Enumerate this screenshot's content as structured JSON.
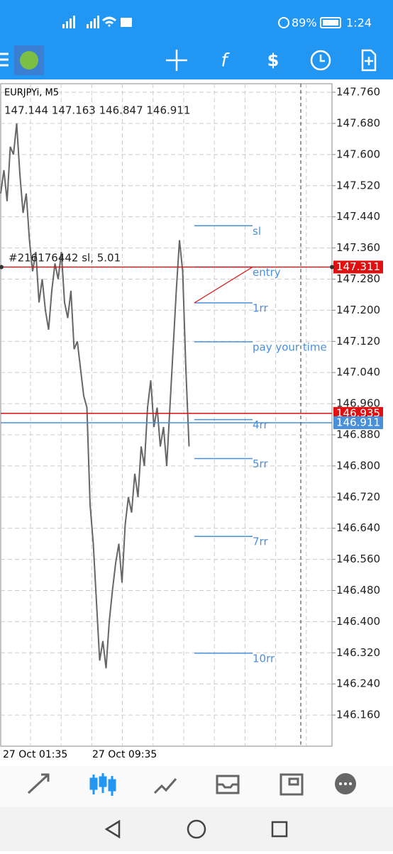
{
  "status_bar": {
    "battery": "89%",
    "time": "1:24"
  },
  "chart": {
    "symbol": "EURJPYi, M5",
    "ohlc": "147.144 147.163 146.847 146.911",
    "order_label": "#216176442 sl, 5.01",
    "ylim": [
      146.08,
      147.782
    ],
    "yticks": [
      {
        "value": 147.76,
        "label": "147.760"
      },
      {
        "value": 147.68,
        "label": "147.680"
      },
      {
        "value": 147.6,
        "label": "147.600"
      },
      {
        "value": 147.52,
        "label": "147.520"
      },
      {
        "value": 147.44,
        "label": "147.440"
      },
      {
        "value": 147.36,
        "label": "147.360"
      },
      {
        "value": 147.28,
        "label": "147.280"
      },
      {
        "value": 147.2,
        "label": "147.200"
      },
      {
        "value": 147.12,
        "label": "147.120"
      },
      {
        "value": 147.04,
        "label": "147.040"
      },
      {
        "value": 146.96,
        "label": "146.960"
      },
      {
        "value": 146.88,
        "label": "146.880"
      },
      {
        "value": 146.8,
        "label": "146.800"
      },
      {
        "value": 146.72,
        "label": "146.720"
      },
      {
        "value": 146.64,
        "label": "146.640"
      },
      {
        "value": 146.56,
        "label": "146.560"
      },
      {
        "value": 146.48,
        "label": "146.480"
      },
      {
        "value": 146.4,
        "label": "146.400"
      },
      {
        "value": 146.32,
        "label": "146.320"
      },
      {
        "value": 146.24,
        "label": "146.240"
      },
      {
        "value": 146.16,
        "label": "146.160"
      }
    ],
    "xlabels": [
      "27 Oct 01:35",
      "27 Oct 09:35"
    ],
    "price_lines": [
      {
        "value": 147.311,
        "color": "#e01010"
      },
      {
        "value": 146.935,
        "color": "#e01010"
      },
      {
        "value": 146.911,
        "color": "#4a90d9"
      }
    ],
    "levels": [
      {
        "label": "sl",
        "value": 147.417
      },
      {
        "label": "entry",
        "value": 147.311
      },
      {
        "label": "1rr",
        "value": 147.219
      },
      {
        "label": "pay your time",
        "value": 147.119
      },
      {
        "label": "4rr",
        "value": 146.919
      },
      {
        "label": "5rr",
        "value": 146.819
      },
      {
        "label": "7rr",
        "value": 146.619
      },
      {
        "label": "10rr",
        "value": 146.319
      }
    ],
    "prices": [
      147.5,
      147.56,
      147.48,
      147.62,
      147.6,
      147.68,
      147.55,
      147.45,
      147.5,
      147.38,
      147.3,
      147.35,
      147.22,
      147.28,
      147.2,
      147.15,
      147.25,
      147.32,
      147.28,
      147.35,
      147.22,
      147.18,
      147.25,
      147.1,
      147.12,
      147.05,
      146.98,
      146.95,
      146.7,
      146.6,
      146.45,
      146.3,
      146.35,
      146.28,
      146.4,
      146.48,
      146.55,
      146.6,
      146.5,
      146.65,
      146.72,
      146.68,
      146.78,
      146.72,
      146.85,
      146.8,
      146.95,
      147.02,
      146.9,
      146.95,
      146.85,
      146.9,
      146.8,
      146.95,
      147.1,
      147.25,
      147.38,
      147.3,
      147.05,
      146.85
    ]
  }
}
